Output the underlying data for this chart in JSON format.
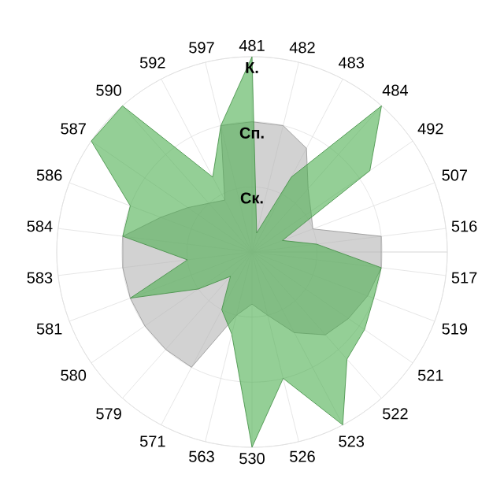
{
  "chart_data": {
    "type": "radar",
    "categories": [
      "481",
      "482",
      "483",
      "484",
      "492",
      "507",
      "516",
      "517",
      "519",
      "521",
      "522",
      "523",
      "526",
      "530",
      "563",
      "571",
      "579",
      "580",
      "581",
      "583",
      "584",
      "586",
      "587",
      "590",
      "592",
      "597"
    ],
    "ylim": [
      0,
      3
    ],
    "yticks": [
      {
        "value": 1,
        "label": "Ск."
      },
      {
        "value": 2,
        "label": "Сп."
      },
      {
        "value": 3,
        "label": "К."
      }
    ],
    "grid": true,
    "series": [
      {
        "type": "radar",
        "color": "#b4b4b4",
        "values": [
          2.0,
          2.0,
          1.8,
          1.3,
          1.1,
          1.0,
          2.0,
          2.0,
          1.9,
          1.8,
          1.7,
          1.4,
          1.0,
          0.8,
          1.0,
          2.0,
          2.0,
          2.0,
          2.0,
          2.0,
          2.0,
          1.5,
          1.2,
          1.0,
          0.9,
          2.0
        ]
      },
      {
        "type": "radar",
        "color": "#4caf50",
        "values": [
          3.0,
          0.3,
          1.3,
          3.0,
          2.2,
          0.5,
          1.0,
          2.0,
          2.0,
          2.1,
          2.2,
          3.0,
          2.0,
          3.0,
          1.3,
          1.0,
          0.5,
          1.0,
          2.0,
          1.0,
          2.0,
          2.0,
          3.0,
          3.0,
          1.3,
          2.0
        ]
      }
    ]
  }
}
